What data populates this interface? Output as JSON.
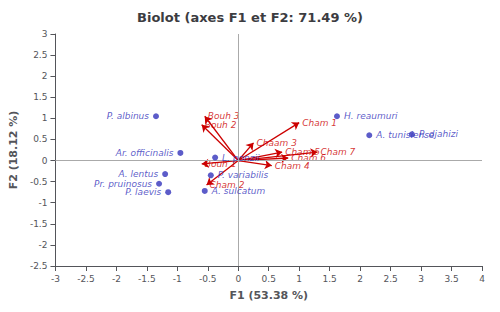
{
  "chart_data": {
    "type": "scatter",
    "title": "Biolot (axes F1 et F2: 71.49 %)",
    "xlabel": "F1 (53.38 %)",
    "ylabel": "F2 (18.12 %)",
    "xlim": [
      -3,
      4
    ],
    "ylim": [
      -2.5,
      3
    ],
    "xticks": [
      -3,
      -2.5,
      -2,
      -1.5,
      -1,
      -0.5,
      0,
      0.5,
      1,
      1.5,
      2,
      2.5,
      3,
      3.5,
      4
    ],
    "yticks": [
      -2.5,
      -2,
      -1.5,
      -1,
      -0.5,
      0,
      0.5,
      1,
      1.5,
      2,
      2.5,
      3
    ],
    "grid": false,
    "series": [
      {
        "color": "#3333bb",
        "marker": "circle",
        "labels": [
          "P. albinus",
          "Ar. officinalis",
          "A. lentus",
          "Pr. pruinosus",
          "P. laevis",
          "L. ponzii",
          "P. variabilis",
          "A. sulcatum",
          "H. reaumuri",
          "A. tunisiense",
          "P. djahizi"
        ],
        "x": [
          -1.35,
          -0.95,
          -1.2,
          -1.3,
          -1.15,
          -0.38,
          -0.45,
          -0.55,
          1.62,
          2.15,
          2.85
        ],
        "y": [
          1.05,
          0.18,
          -0.32,
          -0.55,
          -0.75,
          0.07,
          -0.35,
          -0.72,
          1.05,
          0.6,
          0.62
        ]
      },
      {
        "type": "arrow",
        "color": "#cc0000",
        "labels": [
          "Bouh 1",
          "Bouh 2",
          "Bouh 3",
          "Cham 1",
          "Chaam 3",
          "Cham 2",
          "Cham 4",
          "Cham 5",
          "Cham 6",
          "Cham 7"
        ],
        "x": [
          -0.6,
          -0.6,
          -0.55,
          1.0,
          0.25,
          -0.52,
          0.55,
          0.72,
          0.82,
          1.3
        ],
        "y": [
          -0.08,
          0.85,
          1.05,
          0.9,
          0.42,
          -0.58,
          -0.12,
          0.2,
          0.06,
          0.2
        ]
      }
    ]
  }
}
